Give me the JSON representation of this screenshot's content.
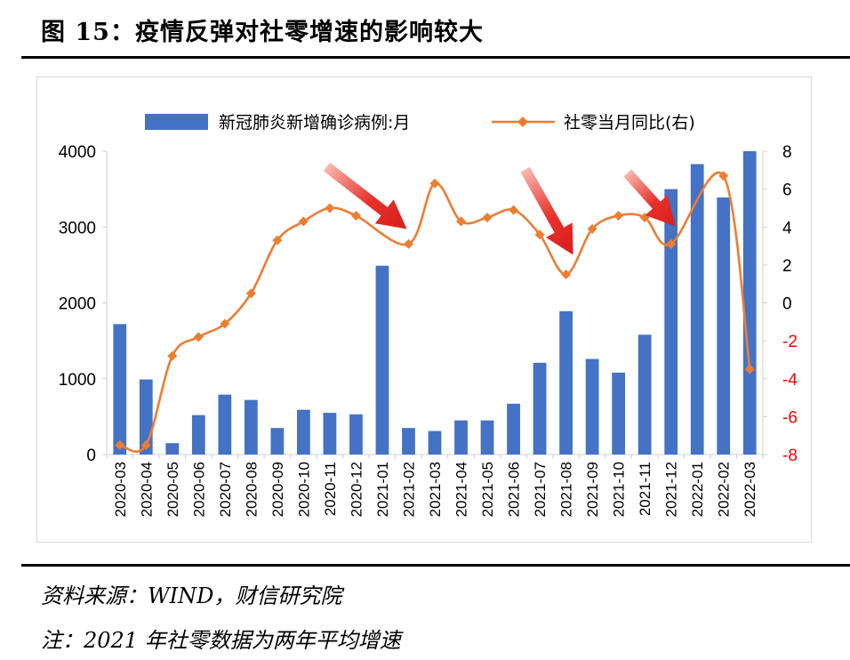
{
  "figure": {
    "title": "图 15：疫情反弹对社零增速的影响较大",
    "source_note": "资料来源：WIND，财信研究院",
    "footnote": "注：2021 年社零数据为两年平均增速"
  },
  "colors": {
    "bar": "#4472C4",
    "line": "#ED7D31",
    "right_axis_text": "#FF0000",
    "arrow": "#E8302A",
    "axis": "#d0d0d0",
    "text": "#000000"
  },
  "chart_data": {
    "type": "bar",
    "categories": [
      "2020-03",
      "2020-04",
      "2020-05",
      "2020-06",
      "2020-07",
      "2020-08",
      "2020-09",
      "2020-10",
      "2020-11",
      "2020-12",
      "2021-01",
      "2021-02",
      "2021-03",
      "2021-04",
      "2021-05",
      "2021-06",
      "2021-07",
      "2021-08",
      "2021-09",
      "2021-10",
      "2021-11",
      "2021-12",
      "2022-01",
      "2022-02",
      "2022-03"
    ],
    "series": [
      {
        "name": "新冠肺炎新增确诊病例:月",
        "type": "bar",
        "axis": "left",
        "values": [
          1720,
          990,
          150,
          520,
          790,
          720,
          350,
          590,
          550,
          530,
          2490,
          350,
          310,
          450,
          450,
          670,
          1210,
          1890,
          1260,
          1080,
          1580,
          3500,
          3830,
          3390,
          4000
        ]
      },
      {
        "name": "社零当月同比(右)",
        "type": "line",
        "axis": "right",
        "values": [
          -7.5,
          -7.5,
          -2.8,
          -1.8,
          -1.1,
          0.5,
          3.3,
          4.3,
          5.0,
          4.6,
          null,
          3.1,
          6.3,
          4.3,
          4.5,
          4.9,
          3.6,
          1.5,
          3.9,
          4.6,
          4.5,
          3.1,
          null,
          6.7,
          -3.5
        ]
      }
    ],
    "y_left": {
      "ylim": [
        0,
        4000
      ],
      "ticks": [
        0,
        1000,
        2000,
        3000,
        4000
      ]
    },
    "y_right": {
      "ylim": [
        -8,
        8
      ],
      "ticks": [
        -8,
        -6,
        -4,
        -2,
        0,
        2,
        4,
        6,
        8
      ]
    },
    "legend_position": "top-center",
    "annotations": [
      {
        "type": "arrow",
        "points_to": "2021-02"
      },
      {
        "type": "arrow",
        "points_to": "2021-08"
      },
      {
        "type": "arrow",
        "points_to": "2021-12"
      }
    ]
  }
}
